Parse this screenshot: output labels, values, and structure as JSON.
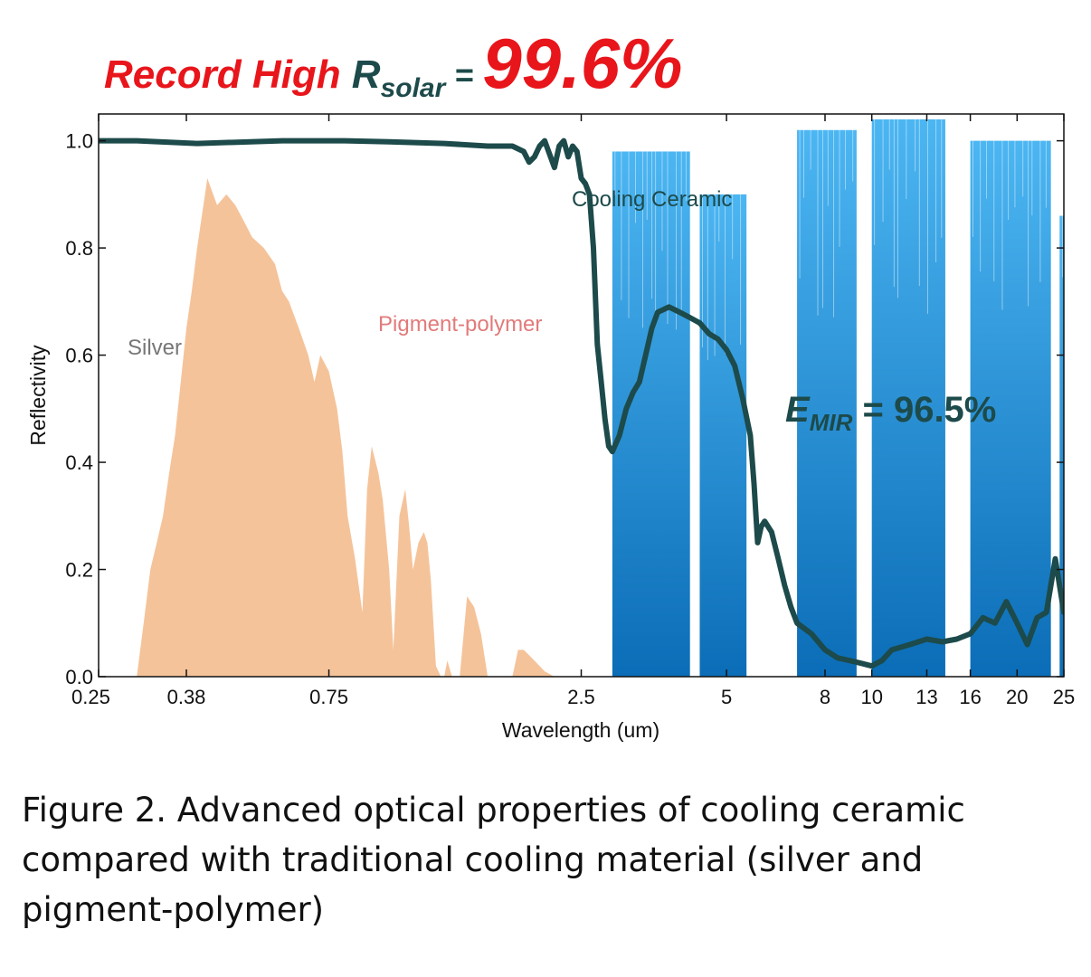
{
  "header": {
    "record_text": "Record High ",
    "r_symbol": "R",
    "r_subscript": "solar",
    "equals": " = ",
    "value": "99.6%"
  },
  "caption": "Figure 2. Advanced optical properties of cooling ceramic compared with traditional cooling material (silver and pigment-polymer)",
  "colors": {
    "silver_fill": "#f5c39a",
    "cooling_line": "#1d4a4a",
    "atmo_dark": "#0b6db7",
    "atmo_light": "#4cb6f2",
    "header_red": "#e8151b",
    "pigment_label": "#e27a7a",
    "silver_label": "#777777"
  },
  "chart_data": {
    "type": "area",
    "xlabel": "Wavelength (um)",
    "ylabel": "Reflectivity",
    "xscale": "log",
    "xlim": [
      0.25,
      25
    ],
    "ylim": [
      0,
      1.05
    ],
    "xticks": [
      0.25,
      0.38,
      0.75,
      2.5,
      5,
      8,
      10,
      13,
      16,
      20,
      25
    ],
    "xtick_labels": [
      "0.25",
      "0.38",
      "0.75",
      "2.5",
      "5",
      "8",
      "10",
      "13",
      "16",
      "20",
      "25"
    ],
    "yticks": [
      0,
      0.2,
      0.4,
      0.6,
      0.8,
      1.0
    ],
    "ytick_labels": [
      "0.0",
      "0.2",
      "0.4",
      "0.6",
      "0.8",
      "1.0"
    ],
    "annotations": [
      {
        "text": "Silver",
        "x": 0.34,
        "y": 0.6
      },
      {
        "text": "Pigment-polymer",
        "x": 1.5,
        "y": 0.63
      },
      {
        "text": "Cooling Ceramic",
        "x": 4.0,
        "y": 0.87
      },
      {
        "text_main": "E",
        "text_sub": "MIR",
        "text_rest": " = 96.5%",
        "x": 7.1,
        "y": 0.45
      }
    ],
    "series": [
      {
        "name": "Cooling Ceramic",
        "kind": "line",
        "x": [
          0.25,
          0.3,
          0.4,
          0.6,
          0.8,
          1.0,
          1.3,
          1.6,
          1.8,
          1.9,
          1.95,
          2.0,
          2.05,
          2.1,
          2.2,
          2.25,
          2.3,
          2.35,
          2.4,
          2.45,
          2.5,
          2.55,
          2.6,
          2.65,
          2.7,
          2.75,
          2.8,
          2.85,
          2.9,
          3.0,
          3.1,
          3.2,
          3.3,
          3.4,
          3.5,
          3.6,
          3.8,
          4.0,
          4.2,
          4.4,
          4.6,
          4.8,
          5.0,
          5.2,
          5.4,
          5.6,
          5.7,
          5.8,
          5.9,
          6.0,
          6.2,
          6.4,
          6.6,
          6.8,
          7.0,
          7.5,
          8.0,
          8.5,
          9.0,
          9.5,
          10.0,
          10.5,
          11.0,
          12.0,
          13.0,
          14.0,
          15.0,
          16.0,
          17.0,
          18.0,
          19.0,
          20.0,
          21.0,
          22.0,
          23.0,
          24.0,
          25.0
        ],
        "y": [
          1.0,
          1.0,
          0.995,
          1.0,
          1.0,
          0.998,
          0.995,
          0.99,
          0.99,
          0.98,
          0.96,
          0.97,
          0.99,
          1.0,
          0.95,
          0.99,
          1.0,
          0.97,
          0.99,
          0.98,
          0.93,
          0.92,
          0.9,
          0.8,
          0.62,
          0.55,
          0.48,
          0.43,
          0.42,
          0.45,
          0.5,
          0.53,
          0.55,
          0.6,
          0.65,
          0.68,
          0.69,
          0.68,
          0.67,
          0.66,
          0.64,
          0.63,
          0.61,
          0.58,
          0.52,
          0.45,
          0.36,
          0.25,
          0.28,
          0.29,
          0.27,
          0.22,
          0.17,
          0.13,
          0.1,
          0.08,
          0.05,
          0.035,
          0.03,
          0.025,
          0.02,
          0.03,
          0.05,
          0.06,
          0.07,
          0.065,
          0.07,
          0.08,
          0.11,
          0.1,
          0.14,
          0.1,
          0.06,
          0.11,
          0.12,
          0.22,
          0.12
        ]
      },
      {
        "name": "Silver",
        "kind": "filled-area",
        "x": [
          0.3,
          0.31,
          0.32,
          0.33,
          0.34,
          0.35,
          0.36,
          0.37,
          0.38,
          0.39,
          0.4,
          0.42,
          0.44,
          0.46,
          0.48,
          0.5,
          0.52,
          0.55,
          0.58,
          0.6,
          0.62,
          0.65,
          0.68,
          0.7,
          0.72,
          0.75,
          0.78,
          0.8,
          0.82,
          0.85,
          0.88,
          0.9,
          0.92,
          0.95,
          0.97,
          1.0,
          1.02,
          1.05,
          1.08,
          1.1,
          1.12,
          1.15,
          1.18,
          1.2,
          1.22,
          1.25,
          1.28,
          1.3,
          1.32,
          1.35,
          1.38,
          1.4,
          1.45,
          1.5,
          1.55,
          1.6,
          1.65,
          1.7,
          1.75,
          1.8,
          1.85,
          1.9,
          1.95,
          2.0,
          2.05,
          2.1,
          2.2,
          2.3,
          2.4,
          2.45
        ],
        "y": [
          0.0,
          0.1,
          0.2,
          0.25,
          0.3,
          0.38,
          0.45,
          0.55,
          0.65,
          0.72,
          0.8,
          0.93,
          0.88,
          0.9,
          0.88,
          0.85,
          0.82,
          0.8,
          0.77,
          0.72,
          0.7,
          0.65,
          0.6,
          0.55,
          0.6,
          0.57,
          0.5,
          0.42,
          0.3,
          0.22,
          0.12,
          0.35,
          0.43,
          0.38,
          0.33,
          0.2,
          0.05,
          0.3,
          0.35,
          0.28,
          0.2,
          0.25,
          0.27,
          0.25,
          0.18,
          0.02,
          0.0,
          0.0,
          0.03,
          0.0,
          0.0,
          0.0,
          0.15,
          0.13,
          0.08,
          0.0,
          0.0,
          0.0,
          0.0,
          0.0,
          0.05,
          0.05,
          0.04,
          0.03,
          0.02,
          0.01,
          0.0,
          0.0,
          0.0,
          0.0
        ]
      },
      {
        "name": "Atmospheric transmittance",
        "kind": "filled-bands",
        "bands": [
          {
            "x0": 2.9,
            "x1": 4.2,
            "top": 0.98
          },
          {
            "x0": 4.4,
            "x1": 5.5,
            "top": 0.9
          },
          {
            "x0": 7.0,
            "x1": 9.3,
            "top": 1.02
          },
          {
            "x0": 10.0,
            "x1": 14.2,
            "top": 1.04
          },
          {
            "x0": 16.0,
            "x1": 23.5,
            "top": 1.0
          },
          {
            "x0": 24.5,
            "x1": 25.0,
            "top": 0.86
          }
        ]
      }
    ]
  }
}
